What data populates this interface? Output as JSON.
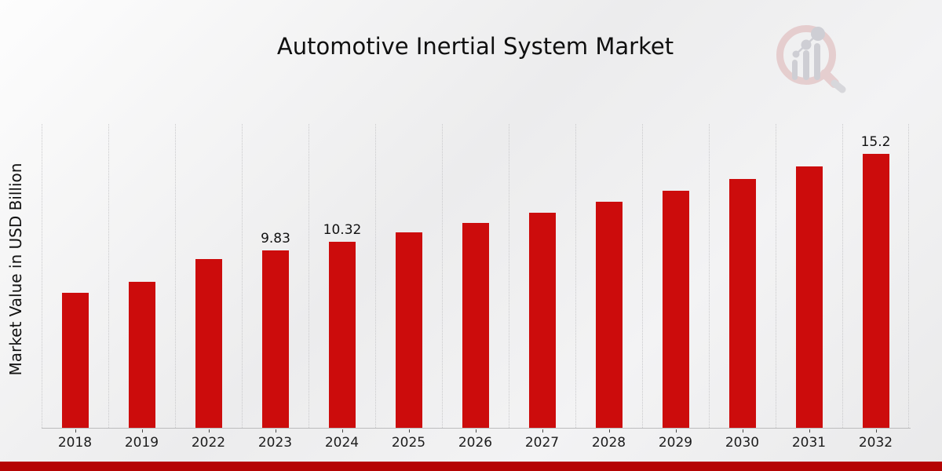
{
  "page": {
    "banner_color": "#b50404",
    "background_tone": "#ececec",
    "logo": "market-research-future-watermark-logo"
  },
  "chart_data": {
    "type": "bar",
    "title": "Automotive Inertial System Market",
    "xlabel": "",
    "ylabel": "Market Value in USD Billion",
    "categories": [
      "2018",
      "2019",
      "2022",
      "2023",
      "2024",
      "2025",
      "2026",
      "2027",
      "2028",
      "2029",
      "2030",
      "2031",
      "2032"
    ],
    "values": [
      7.5,
      8.1,
      9.35,
      9.83,
      10.32,
      10.85,
      11.38,
      11.95,
      12.55,
      13.15,
      13.8,
      14.5,
      15.2
    ],
    "bar_labels": [
      "",
      "",
      "",
      "9.83",
      "10.32",
      "",
      "",
      "",
      "",
      "",
      "",
      "",
      "15.2"
    ],
    "bar_color": "#cc0c0c",
    "ylim": [
      0,
      16.9
    ],
    "grid": "vertical-dotted-gridlines",
    "legend": "none"
  }
}
